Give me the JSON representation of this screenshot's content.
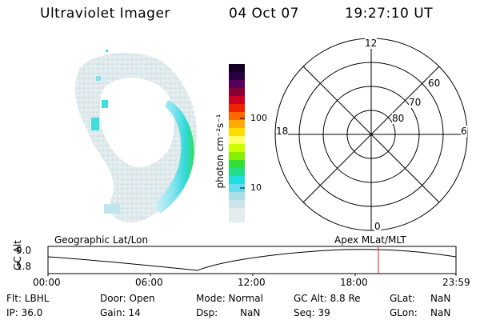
{
  "header": {
    "instrument": "Ultraviolet Imager",
    "date": "04 Oct 07",
    "time": "19:27:10 UT"
  },
  "colorbar": {
    "label": "photon cm⁻²s⁻¹",
    "ticks": [
      "100",
      "10"
    ]
  },
  "polar_plot": {
    "hour_labels": {
      "top": "12",
      "left": "18",
      "right": "6",
      "bottom": "0"
    },
    "lat_labels": [
      "60",
      "70",
      "80"
    ]
  },
  "timeline": {
    "y_axis_label": "GC Alt",
    "y_ticks": [
      "9.0",
      "1.8"
    ],
    "left_caption": "Geographic Lat/Lon",
    "right_caption": "Apex  MLat/MLT",
    "x_ticks": [
      "00:00",
      "06:00",
      "12:00",
      "18:00",
      "23:59"
    ],
    "marker_color": "#cc2222"
  },
  "info": {
    "filter": "Flt: LBHL",
    "door": "Door: Open",
    "mode": "Mode: Normal",
    "gc_alt": "GC Alt: 8.8 Re",
    "glat_label": "GLat:",
    "glat_value": "NaN",
    "ip": "IP: 36.0",
    "gain": "Gain: 14",
    "dsp_label": "Dsp:",
    "dsp_value": "NaN",
    "seq": "Seq: 39",
    "glon_label": "GLon:",
    "glon_value": "NaN"
  }
}
